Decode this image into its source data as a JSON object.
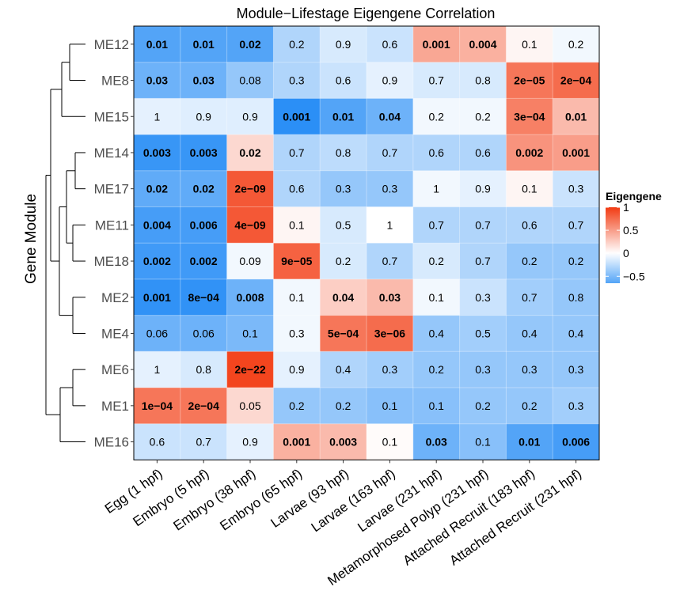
{
  "chart_data": {
    "type": "heatmap",
    "title": "Module−Lifestage Eigengene Correlation",
    "ylabel": "Gene Module",
    "xlabel": "",
    "rows": [
      "ME12",
      "ME8",
      "ME15",
      "ME14",
      "ME17",
      "ME11",
      "ME18",
      "ME2",
      "ME4",
      "ME6",
      "ME1",
      "ME16"
    ],
    "columns": [
      "Egg (1 hpf)",
      "Embryo (5 hpf)",
      "Embryo (38 hpf)",
      "Embryo (65 hpf)",
      "Larvae (93 hpf)",
      "Larvae (163 hpf)",
      "Larvae (231 hpf)",
      "Metamorphosed Polyp (231 hpf)",
      "Attached Recruit (183 hpf)",
      "Attached Recruit (231 hpf)"
    ],
    "correlations": [
      [
        -0.65,
        -0.65,
        -0.65,
        -0.3,
        -0.15,
        -0.2,
        0.45,
        0.4,
        0.05,
        -0.05
      ],
      [
        -0.55,
        -0.55,
        -0.4,
        -0.3,
        -0.2,
        -0.1,
        -0.15,
        -0.15,
        0.7,
        0.75
      ],
      [
        -0.1,
        -0.12,
        -0.12,
        -0.8,
        -0.65,
        -0.55,
        -0.05,
        -0.05,
        0.65,
        0.35
      ],
      [
        -0.75,
        -0.75,
        0.2,
        -0.3,
        -0.25,
        -0.3,
        -0.3,
        -0.3,
        0.55,
        0.5
      ],
      [
        -0.6,
        -0.6,
        0.85,
        -0.3,
        -0.4,
        -0.4,
        -0.05,
        -0.1,
        0.05,
        -0.2
      ],
      [
        -0.7,
        -0.7,
        0.85,
        0.05,
        -0.15,
        0.0,
        -0.3,
        -0.3,
        -0.3,
        -0.3
      ],
      [
        -0.72,
        -0.72,
        -0.05,
        0.8,
        -0.15,
        -0.3,
        -0.15,
        -0.3,
        -0.4,
        -0.4
      ],
      [
        -0.78,
        -0.78,
        -0.55,
        -0.05,
        0.25,
        0.35,
        -0.05,
        -0.2,
        -0.35,
        -0.4
      ],
      [
        -0.55,
        -0.55,
        -0.5,
        -0.05,
        0.7,
        0.75,
        -0.4,
        -0.35,
        -0.4,
        -0.4
      ],
      [
        -0.1,
        -0.15,
        0.95,
        -0.1,
        -0.3,
        -0.35,
        -0.4,
        -0.4,
        -0.4,
        -0.4
      ],
      [
        0.7,
        0.7,
        0.2,
        -0.4,
        -0.4,
        -0.45,
        -0.45,
        -0.4,
        -0.4,
        -0.35
      ],
      [
        -0.2,
        -0.2,
        -0.1,
        0.4,
        0.35,
        0.02,
        -0.55,
        -0.45,
        -0.65,
        -0.7
      ]
    ],
    "pvalues": [
      [
        "0.01",
        "0.01",
        "0.02",
        "0.2",
        "0.9",
        "0.6",
        "0.001",
        "0.004",
        "0.1",
        "0.2"
      ],
      [
        "0.03",
        "0.03",
        "0.08",
        "0.3",
        "0.6",
        "0.9",
        "0.7",
        "0.8",
        "2e−05",
        "2e−04"
      ],
      [
        "1",
        "0.9",
        "0.9",
        "0.001",
        "0.01",
        "0.04",
        "0.2",
        "0.2",
        "3e−04",
        "0.01"
      ],
      [
        "0.003",
        "0.003",
        "0.02",
        "0.7",
        "0.8",
        "0.7",
        "0.6",
        "0.6",
        "0.002",
        "0.001"
      ],
      [
        "0.02",
        "0.02",
        "2e−09",
        "0.6",
        "0.3",
        "0.3",
        "1",
        "0.9",
        "0.1",
        "0.3"
      ],
      [
        "0.004",
        "0.006",
        "4e−09",
        "0.1",
        "0.5",
        "1",
        "0.7",
        "0.7",
        "0.6",
        "0.7"
      ],
      [
        "0.002",
        "0.002",
        "0.09",
        "9e−05",
        "0.2",
        "0.7",
        "0.2",
        "0.7",
        "0.2",
        "0.2"
      ],
      [
        "0.001",
        "8e−04",
        "0.008",
        "0.1",
        "0.04",
        "0.03",
        "0.1",
        "0.3",
        "0.7",
        "0.8"
      ],
      [
        "0.06",
        "0.06",
        "0.1",
        "0.3",
        "5e−04",
        "3e−06",
        "0.4",
        "0.5",
        "0.4",
        "0.4"
      ],
      [
        "1",
        "0.8",
        "2e−22",
        "0.9",
        "0.4",
        "0.3",
        "0.2",
        "0.3",
        "0.3",
        "0.3"
      ],
      [
        "1e−04",
        "2e−04",
        "0.05",
        "0.2",
        "0.2",
        "0.1",
        "0.1",
        "0.2",
        "0.2",
        "0.3"
      ],
      [
        "0.6",
        "0.7",
        "0.9",
        "0.001",
        "0.003",
        "0.1",
        "0.03",
        "0.1",
        "0.01",
        "0.006"
      ]
    ],
    "legend": {
      "title": "Eigengene",
      "ticks": [
        1,
        0.5,
        0,
        -0.5
      ],
      "range": [
        -0.65,
        1
      ],
      "colors": {
        "low": "#1e88f5",
        "mid": "#ffffff",
        "high": "#f23b12"
      }
    }
  }
}
